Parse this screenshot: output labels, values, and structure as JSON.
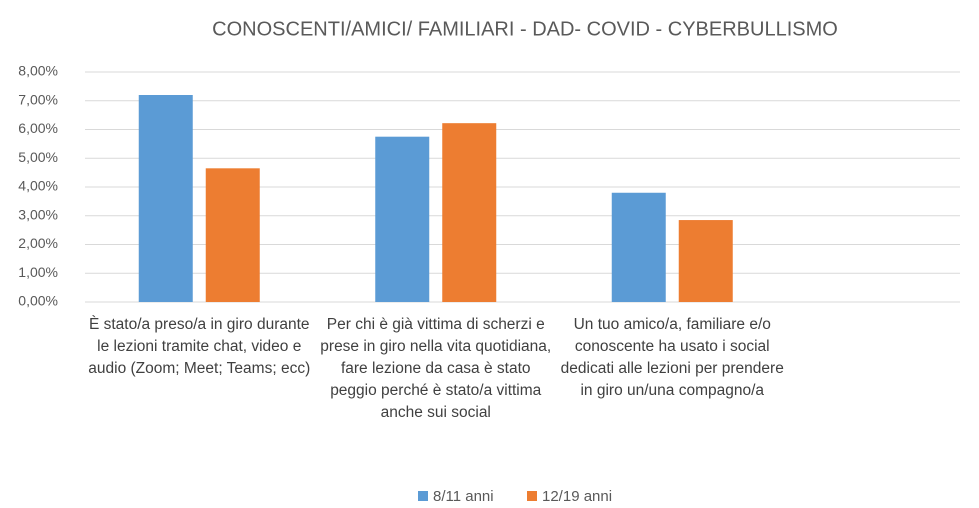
{
  "chart_data": {
    "type": "bar",
    "title": "CONOSCENTI/AMICI/ FAMILIARI - DAD- COVID - CYBERBULLISMO",
    "categories": [
      "È stato/a preso/a in giro durante le lezioni tramite chat, video e audio (Zoom; Meet; Teams; ecc)",
      "Per chi è già vittima di scherzi e prese in giro nella vita quotidiana, fare lezione da casa è stato peggio perché è stato/a vittima anche sui social",
      "Un tuo amico/a, familiare e/o conoscente ha usato i social dedicati alle lezioni per prendere in giro un/una compagno/a"
    ],
    "series": [
      {
        "name": "8/11 anni",
        "color": "#5b9bd5",
        "values": [
          7.2,
          5.75,
          3.8
        ]
      },
      {
        "name": "12/19 anni",
        "color": "#ed7d31",
        "values": [
          4.65,
          6.22,
          2.85
        ]
      }
    ],
    "ylim": [
      0,
      8
    ],
    "yticks": [
      {
        "value": 0,
        "label": "0,00%"
      },
      {
        "value": 1,
        "label": "1,00%"
      },
      {
        "value": 2,
        "label": "2,00%"
      },
      {
        "value": 3,
        "label": "3,00%"
      },
      {
        "value": 4,
        "label": "4,00%"
      },
      {
        "value": 5,
        "label": "5,00%"
      },
      {
        "value": 6,
        "label": "6,00%"
      },
      {
        "value": 7,
        "label": "7,00%"
      },
      {
        "value": 8,
        "label": "8,00%"
      }
    ],
    "grid": true,
    "legend": "bottom"
  }
}
